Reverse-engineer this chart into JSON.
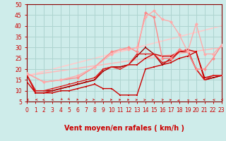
{
  "xlabel": "Vent moyen/en rafales ( km/h )",
  "xlim": [
    0,
    23
  ],
  "ylim": [
    5,
    50
  ],
  "yticks": [
    5,
    10,
    15,
    20,
    25,
    30,
    35,
    40,
    45,
    50
  ],
  "xticks": [
    0,
    1,
    2,
    3,
    4,
    5,
    6,
    7,
    8,
    9,
    10,
    11,
    12,
    13,
    14,
    15,
    16,
    17,
    18,
    19,
    20,
    21,
    22,
    23
  ],
  "background_color": "#ceecea",
  "grid_color": "#aed4d0",
  "series": [
    {
      "x": [
        0,
        1,
        2,
        3,
        4,
        5,
        6,
        7,
        8,
        9,
        10,
        11,
        12,
        13,
        14,
        15,
        16,
        17,
        18,
        19,
        20,
        21,
        22,
        23
      ],
      "y": [
        14,
        9,
        9,
        9,
        10,
        10,
        11,
        12,
        13,
        11,
        11,
        8,
        8,
        8,
        20,
        21,
        22,
        23,
        25,
        26,
        28,
        15,
        16,
        17
      ],
      "color": "#cc0000",
      "lw": 1.0,
      "marker": "s",
      "ms": 2.0
    },
    {
      "x": [
        0,
        1,
        2,
        3,
        4,
        5,
        6,
        7,
        8,
        9,
        10,
        11,
        12,
        13,
        14,
        15,
        16,
        17,
        18,
        19,
        20,
        21,
        22,
        23
      ],
      "y": [
        17,
        9,
        9,
        10,
        11,
        12,
        13,
        14,
        15,
        20,
        21,
        21,
        22,
        22,
        25,
        27,
        26,
        26,
        28,
        29,
        28,
        16,
        17,
        17
      ],
      "color": "#cc0000",
      "lw": 1.0,
      "marker": "s",
      "ms": 2.0
    },
    {
      "x": [
        0,
        1,
        2,
        3,
        4,
        5,
        6,
        7,
        8,
        9,
        10,
        11,
        12,
        13,
        14,
        15,
        16,
        17,
        18,
        19,
        20,
        21,
        22,
        23
      ],
      "y": [
        17,
        10,
        10,
        10,
        11,
        12,
        13,
        14,
        15,
        19,
        21,
        21,
        22,
        26,
        30,
        27,
        22,
        25,
        28,
        28,
        20,
        15,
        16,
        17
      ],
      "color": "#aa0000",
      "lw": 1.0,
      "marker": "s",
      "ms": 2.0
    },
    {
      "x": [
        0,
        1,
        2,
        3,
        4,
        5,
        6,
        7,
        8,
        9,
        10,
        11,
        12,
        13,
        14,
        15,
        16,
        17,
        18,
        19,
        20,
        21,
        22,
        23
      ],
      "y": [
        17,
        10,
        10,
        11,
        12,
        13,
        14,
        15,
        16,
        20,
        21,
        20,
        22,
        27,
        27,
        27,
        23,
        24,
        28,
        29,
        20,
        15,
        17,
        17
      ],
      "color": "#dd2222",
      "lw": 1.0,
      "marker": "s",
      "ms": 2.0
    },
    {
      "x": [
        0,
        2,
        4,
        6,
        8,
        10,
        11,
        12,
        13,
        14,
        15,
        16,
        17,
        18,
        19,
        20,
        21,
        22,
        23
      ],
      "y": [
        18,
        14,
        15,
        16,
        21,
        28,
        29,
        30,
        28,
        46,
        44,
        25,
        25,
        29,
        28,
        20,
        20,
        25,
        31
      ],
      "color": "#ff8888",
      "lw": 1.0,
      "marker": "D",
      "ms": 2.5
    },
    {
      "x": [
        0,
        2,
        4,
        6,
        8,
        10,
        11,
        12,
        13,
        14,
        15,
        16,
        17,
        18,
        19,
        20,
        21,
        22,
        23
      ],
      "y": [
        18,
        14,
        15,
        17,
        21,
        27,
        29,
        29,
        30,
        44,
        47,
        43,
        42,
        36,
        28,
        41,
        27,
        27,
        31
      ],
      "color": "#ffaaaa",
      "lw": 1.0,
      "marker": "D",
      "ms": 2.5
    },
    {
      "x": [
        0,
        23
      ],
      "y": [
        17,
        30
      ],
      "color": "#ffbbbb",
      "lw": 1.2,
      "marker": null,
      "ms": 0
    },
    {
      "x": [
        0,
        23
      ],
      "y": [
        17,
        40
      ],
      "color": "#ffcccc",
      "lw": 1.2,
      "marker": null,
      "ms": 0
    }
  ],
  "arrow_color": "#cc0000",
  "xlabel_color": "#cc0000",
  "tick_color": "#cc0000",
  "axis_color": "#880000",
  "xlabel_fontsize": 7,
  "tick_fontsize": 5.5
}
